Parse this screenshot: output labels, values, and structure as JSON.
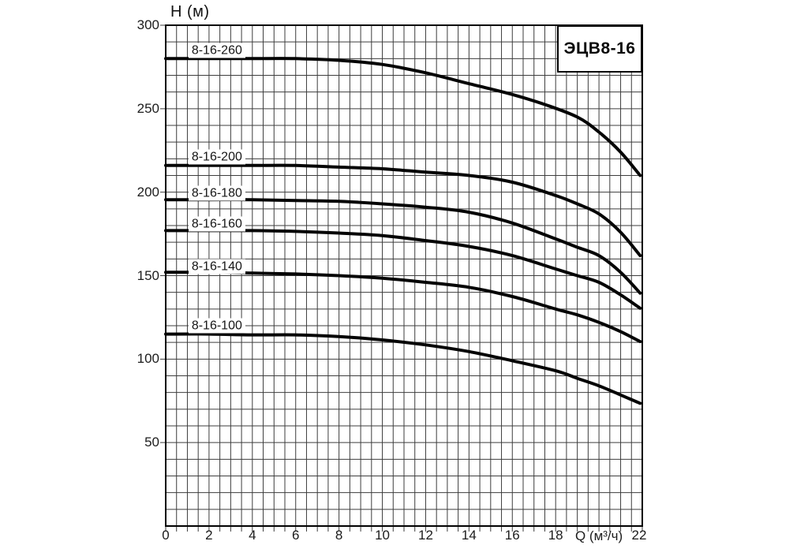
{
  "chart_data": {
    "type": "line",
    "title": "ЭЦВ8-16",
    "ylabel": "H (м)",
    "xlabel": "Q (м³/ч)",
    "xlabel_position": 20,
    "xlim": [
      0,
      22
    ],
    "ylim": [
      0,
      300
    ],
    "x_ticks": [
      0,
      2,
      4,
      6,
      8,
      10,
      12,
      14,
      16,
      18,
      22
    ],
    "y_ticks": [
      50,
      100,
      150,
      200,
      250,
      300
    ],
    "x_minor_step": 0.5,
    "y_minor_step": 10,
    "grid": true,
    "legend_position": "labels-on-curves",
    "line_color": "#050505",
    "grid_color": "#3d3d3d",
    "series": [
      {
        "name": "8-16-260",
        "label_pos": [
          1.05,
          285
        ],
        "points": [
          [
            0,
            280
          ],
          [
            2,
            280
          ],
          [
            4,
            280
          ],
          [
            6,
            280
          ],
          [
            8,
            279
          ],
          [
            10,
            276.5
          ],
          [
            12,
            271.5
          ],
          [
            14,
            265
          ],
          [
            16,
            258.5
          ],
          [
            17.5,
            252.5
          ],
          [
            19,
            245
          ],
          [
            20,
            236
          ],
          [
            21,
            224
          ],
          [
            21.9,
            210
          ]
        ]
      },
      {
        "name": "8-16-200",
        "label_pos": [
          1.05,
          221
        ],
        "points": [
          [
            0,
            216
          ],
          [
            2,
            216
          ],
          [
            4,
            216
          ],
          [
            6,
            216
          ],
          [
            8,
            215
          ],
          [
            10,
            214
          ],
          [
            12,
            212
          ],
          [
            14,
            210
          ],
          [
            16,
            206
          ],
          [
            18,
            198
          ],
          [
            19,
            193
          ],
          [
            20,
            187
          ],
          [
            21,
            176
          ],
          [
            21.9,
            162
          ]
        ]
      },
      {
        "name": "8-16-180",
        "label_pos": [
          1.05,
          199.5
        ],
        "points": [
          [
            0,
            195.5
          ],
          [
            2,
            195.5
          ],
          [
            4,
            195.5
          ],
          [
            6,
            195
          ],
          [
            8,
            194.5
          ],
          [
            10,
            193
          ],
          [
            12,
            191
          ],
          [
            14,
            188
          ],
          [
            16,
            181.5
          ],
          [
            18,
            172
          ],
          [
            19,
            167
          ],
          [
            20,
            162
          ],
          [
            21,
            152
          ],
          [
            21.9,
            139.5
          ]
        ]
      },
      {
        "name": "8-16-160",
        "label_pos": [
          1.05,
          181
        ],
        "points": [
          [
            0,
            177
          ],
          [
            2,
            177
          ],
          [
            4,
            177
          ],
          [
            6,
            176.5
          ],
          [
            8,
            175.5
          ],
          [
            10,
            174
          ],
          [
            12,
            171
          ],
          [
            14,
            167.5
          ],
          [
            16,
            162
          ],
          [
            18,
            154
          ],
          [
            19,
            150
          ],
          [
            20,
            146
          ],
          [
            21,
            138.5
          ],
          [
            21.9,
            130.5
          ]
        ]
      },
      {
        "name": "8-16-140",
        "label_pos": [
          1.05,
          155.5
        ],
        "points": [
          [
            0,
            152
          ],
          [
            2,
            152
          ],
          [
            4,
            151.5
          ],
          [
            6,
            151
          ],
          [
            8,
            150
          ],
          [
            10,
            148.5
          ],
          [
            12,
            146
          ],
          [
            14,
            143
          ],
          [
            16,
            137.5
          ],
          [
            18,
            130
          ],
          [
            19,
            126.5
          ],
          [
            20,
            122
          ],
          [
            21,
            116.5
          ],
          [
            21.9,
            110.5
          ]
        ]
      },
      {
        "name": "8-16-100",
        "label_pos": [
          1.05,
          120
        ],
        "points": [
          [
            0,
            115
          ],
          [
            2,
            115
          ],
          [
            4,
            114.5
          ],
          [
            6,
            114.5
          ],
          [
            8,
            113.5
          ],
          [
            10,
            111.5
          ],
          [
            12,
            108.5
          ],
          [
            14,
            104.5
          ],
          [
            16,
            99
          ],
          [
            18,
            93
          ],
          [
            19,
            88.5
          ],
          [
            20,
            84
          ],
          [
            21,
            78.5
          ],
          [
            21.9,
            73.5
          ]
        ]
      }
    ]
  }
}
